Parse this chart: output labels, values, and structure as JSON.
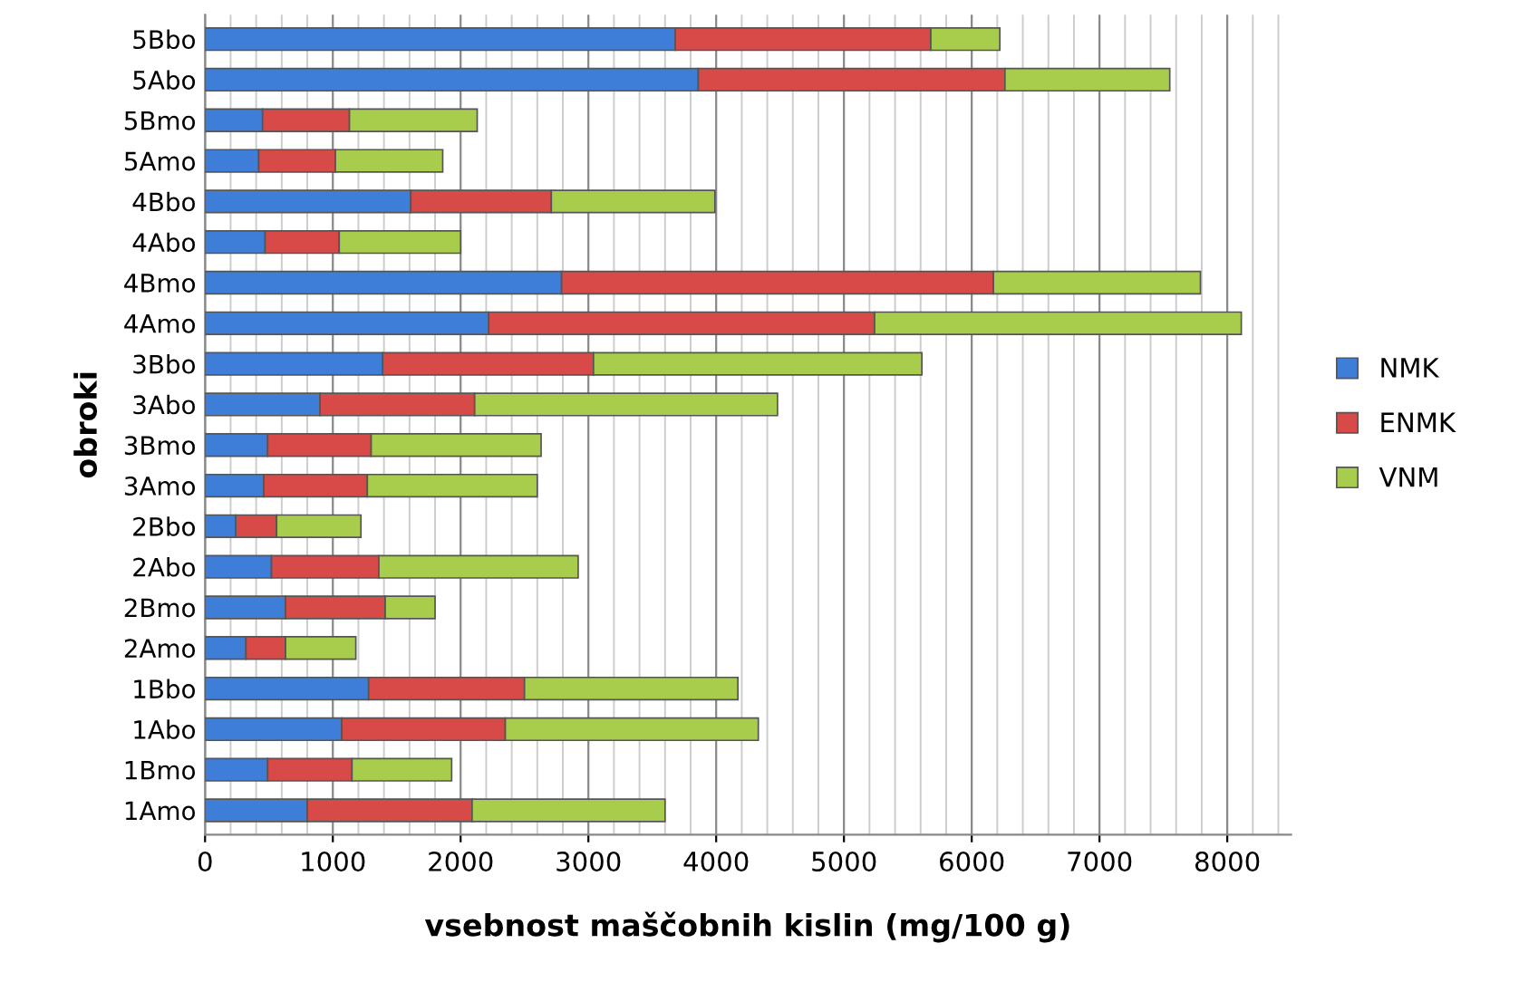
{
  "chart_data": {
    "type": "bar",
    "orientation": "horizontal",
    "stacked": true,
    "xlabel": "vsebnost maščobnih kislin (mg/100 g)",
    "ylabel": "obroki",
    "categories": [
      "5Bbo",
      "5Abo",
      "5Bmo",
      "5Amo",
      "4Bbo",
      "4Abo",
      "4Bmo",
      "4Amo",
      "3Bbo",
      "3Abo",
      "3Bmo",
      "3Amo",
      "2Bbo",
      "2Abo",
      "2Bmo",
      "2Amo",
      "1Bbo",
      "1Abo",
      "1Bmo",
      "1Amo"
    ],
    "series": [
      {
        "name": "NMK",
        "color": "#3f7ed8",
        "values": [
          3680,
          3860,
          450,
          420,
          1610,
          470,
          2790,
          2220,
          1390,
          900,
          490,
          460,
          240,
          520,
          630,
          320,
          1280,
          1070,
          490,
          800
        ]
      },
      {
        "name": "ENMK",
        "color": "#d84a47",
        "values": [
          2000,
          2400,
          680,
          600,
          1100,
          580,
          3380,
          3020,
          1650,
          1210,
          810,
          810,
          320,
          840,
          780,
          310,
          1220,
          1280,
          660,
          1290
        ]
      },
      {
        "name": "VNM",
        "color": "#a8cc4c",
        "values": [
          540,
          1290,
          1000,
          840,
          1280,
          950,
          1620,
          2870,
          2570,
          2370,
          1330,
          1330,
          660,
          1560,
          390,
          550,
          1670,
          1980,
          780,
          1510
        ]
      }
    ],
    "xlim": [
      0,
      8500
    ],
    "xticks": [
      0,
      1000,
      2000,
      3000,
      4000,
      5000,
      6000,
      7000,
      8000
    ],
    "grid": "x",
    "legend": "right"
  }
}
